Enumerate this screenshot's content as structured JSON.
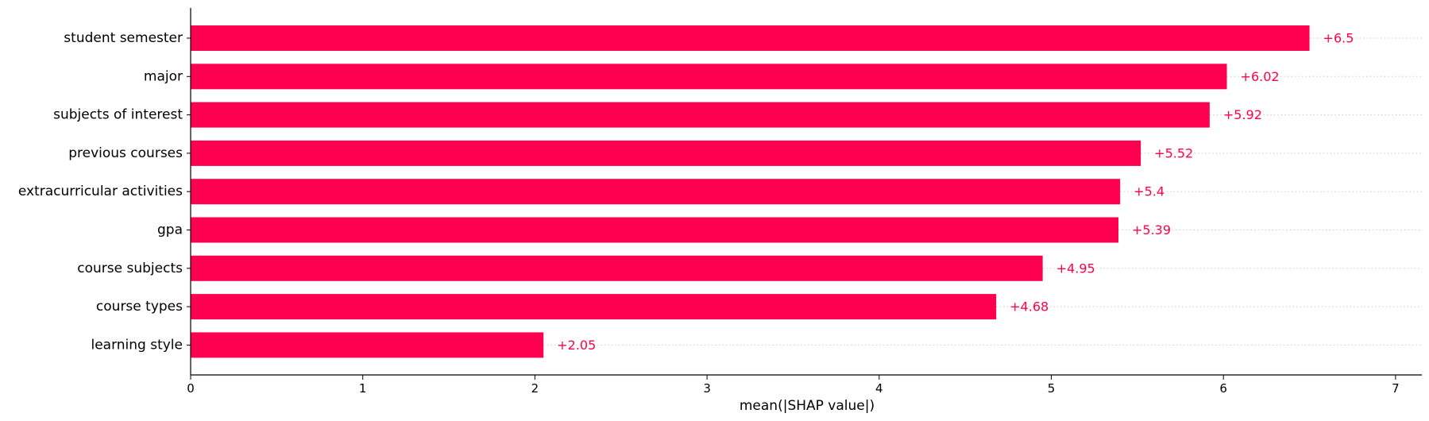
{
  "chart_data": {
    "type": "bar",
    "orientation": "horizontal",
    "title": "",
    "xlabel": "mean(|SHAP value|)",
    "ylabel": "",
    "xlim": [
      0,
      7.2
    ],
    "xticks": [
      0,
      1,
      2,
      3,
      4,
      5,
      6,
      7
    ],
    "grid": "dotted horizontal guide lines",
    "bar_color": "#ff0051",
    "categories": [
      "student semester",
      "major",
      "subjects of interest",
      "previous courses",
      "extracurricular activities",
      "gpa",
      "course subjects",
      "course types",
      "learning style"
    ],
    "values": [
      6.5,
      6.02,
      5.92,
      5.52,
      5.4,
      5.39,
      4.95,
      4.68,
      2.05
    ],
    "value_labels": [
      "+6.5",
      "+6.02",
      "+5.92",
      "+5.52",
      "+5.4",
      "+5.39",
      "+4.95",
      "+4.68",
      "+2.05"
    ]
  }
}
